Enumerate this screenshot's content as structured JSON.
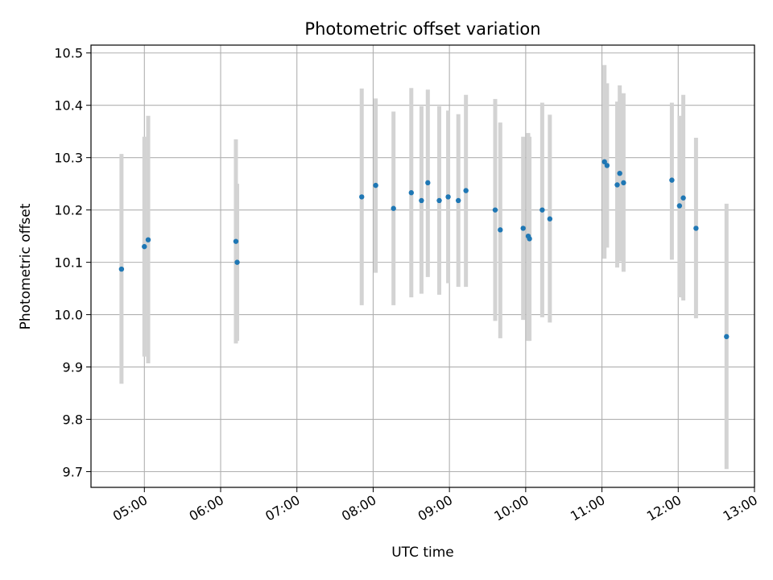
{
  "chart_data": {
    "type": "scatter",
    "title": "Photometric offset variation",
    "xlabel": "UTC time",
    "ylabel": "Photometric offset",
    "x_axis_type": "time",
    "xlim": [
      "04:18",
      "13:00"
    ],
    "ylim": [
      9.67,
      10.515
    ],
    "x_ticks": [
      "05:00",
      "06:00",
      "07:00",
      "08:00",
      "09:00",
      "10:00",
      "11:00",
      "12:00",
      "13:00"
    ],
    "y_ticks": [
      9.7,
      9.8,
      9.9,
      10.0,
      10.1,
      10.2,
      10.3,
      10.4,
      10.5
    ],
    "y_tick_labels": [
      "9.7",
      "9.8",
      "9.9",
      "10.0",
      "10.1",
      "10.2",
      "10.3",
      "10.4",
      "10.5"
    ],
    "grid": true,
    "marker_color": "#1f77b4",
    "errorbar_color": "#d3d3d3",
    "points": [
      {
        "x": "04:42",
        "y": 10.087,
        "ylo": 9.868,
        "yhi": 10.307
      },
      {
        "x": "05:00",
        "y": 10.13,
        "ylo": 9.92,
        "yhi": 10.34
      },
      {
        "x": "05:03",
        "y": 10.143,
        "ylo": 9.907,
        "yhi": 10.38
      },
      {
        "x": "06:12",
        "y": 10.14,
        "ylo": 9.945,
        "yhi": 10.335
      },
      {
        "x": "06:13",
        "y": 10.1,
        "ylo": 9.95,
        "yhi": 10.25
      },
      {
        "x": "07:51",
        "y": 10.225,
        "ylo": 10.018,
        "yhi": 10.432
      },
      {
        "x": "08:02",
        "y": 10.247,
        "ylo": 10.08,
        "yhi": 10.413
      },
      {
        "x": "08:16",
        "y": 10.203,
        "ylo": 10.018,
        "yhi": 10.388
      },
      {
        "x": "08:30",
        "y": 10.233,
        "ylo": 10.033,
        "yhi": 10.433
      },
      {
        "x": "08:38",
        "y": 10.218,
        "ylo": 10.04,
        "yhi": 10.398
      },
      {
        "x": "08:43",
        "y": 10.252,
        "ylo": 10.072,
        "yhi": 10.43
      },
      {
        "x": "08:52",
        "y": 10.218,
        "ylo": 10.038,
        "yhi": 10.398
      },
      {
        "x": "08:59",
        "y": 10.225,
        "ylo": 10.06,
        "yhi": 10.39
      },
      {
        "x": "09:07",
        "y": 10.218,
        "ylo": 10.053,
        "yhi": 10.383
      },
      {
        "x": "09:13",
        "y": 10.237,
        "ylo": 10.053,
        "yhi": 10.42
      },
      {
        "x": "09:36",
        "y": 10.2,
        "ylo": 9.988,
        "yhi": 10.412
      },
      {
        "x": "09:40",
        "y": 10.162,
        "ylo": 9.955,
        "yhi": 10.367
      },
      {
        "x": "09:58",
        "y": 10.165,
        "ylo": 9.99,
        "yhi": 10.34
      },
      {
        "x": "10:02",
        "y": 10.15,
        "ylo": 9.95,
        "yhi": 10.347
      },
      {
        "x": "10:03",
        "y": 10.145,
        "ylo": 9.95,
        "yhi": 10.34
      },
      {
        "x": "10:13",
        "y": 10.2,
        "ylo": 9.995,
        "yhi": 10.405
      },
      {
        "x": "10:19",
        "y": 10.183,
        "ylo": 9.985,
        "yhi": 10.382
      },
      {
        "x": "11:02",
        "y": 10.292,
        "ylo": 10.107,
        "yhi": 10.477
      },
      {
        "x": "11:04",
        "y": 10.285,
        "ylo": 10.128,
        "yhi": 10.442
      },
      {
        "x": "11:12",
        "y": 10.248,
        "ylo": 10.09,
        "yhi": 10.407
      },
      {
        "x": "11:14",
        "y": 10.27,
        "ylo": 10.102,
        "yhi": 10.438
      },
      {
        "x": "11:17",
        "y": 10.252,
        "ylo": 10.082,
        "yhi": 10.423
      },
      {
        "x": "11:55",
        "y": 10.257,
        "ylo": 10.105,
        "yhi": 10.405
      },
      {
        "x": "12:01",
        "y": 10.208,
        "ylo": 10.033,
        "yhi": 10.38
      },
      {
        "x": "12:04",
        "y": 10.223,
        "ylo": 10.027,
        "yhi": 10.42
      },
      {
        "x": "12:14",
        "y": 10.165,
        "ylo": 9.993,
        "yhi": 10.338
      },
      {
        "x": "12:38",
        "y": 9.958,
        "ylo": 9.705,
        "yhi": 10.212
      }
    ]
  }
}
